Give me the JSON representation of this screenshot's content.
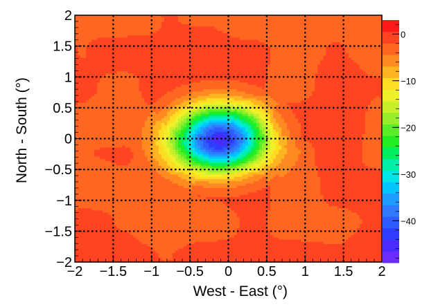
{
  "chart_data": {
    "type": "heatmap",
    "title": "",
    "xlabel": "West - East (°)",
    "ylabel": "North - South (°)",
    "xlim": [
      -2,
      2
    ],
    "ylim": [
      -2,
      2
    ],
    "x_ticks": [
      {
        "value": -2,
        "label": "−2"
      },
      {
        "value": -1.5,
        "label": "−1.5"
      },
      {
        "value": -1,
        "label": "−1"
      },
      {
        "value": -0.5,
        "label": "−0.5"
      },
      {
        "value": 0,
        "label": "0"
      },
      {
        "value": 0.5,
        "label": "0.5"
      },
      {
        "value": 1,
        "label": "1"
      },
      {
        "value": 1.5,
        "label": "1.5"
      },
      {
        "value": 2,
        "label": "2"
      }
    ],
    "y_ticks": [
      {
        "value": 2,
        "label": "2"
      },
      {
        "value": 1.5,
        "label": "1.5"
      },
      {
        "value": 1,
        "label": "1"
      },
      {
        "value": 0.5,
        "label": "0.5"
      },
      {
        "value": 0,
        "label": "0"
      },
      {
        "value": -0.5,
        "label": "−0.5"
      },
      {
        "value": -1,
        "label": "−1"
      },
      {
        "value": -1.5,
        "label": "−1.5"
      },
      {
        "value": -2,
        "label": "−2"
      }
    ],
    "grid": true,
    "deficit_center": {
      "x": -0.12,
      "y": 0.0
    },
    "deficit_min_value": -45,
    "background_value": -2,
    "colorbar": {
      "range": [
        -49,
        3
      ],
      "ticks": [
        {
          "value": 0,
          "label": "0"
        },
        {
          "value": -10,
          "label": "−10"
        },
        {
          "value": -20,
          "label": "−20"
        },
        {
          "value": -30,
          "label": "−30"
        },
        {
          "value": -40,
          "label": "−40"
        }
      ],
      "colors": [
        "#6a2cff",
        "#4a2bff",
        "#2f3dff",
        "#2f5bff",
        "#2f7aff",
        "#1e9cff",
        "#00c4ff",
        "#00e6e6",
        "#00f0a8",
        "#00ee60",
        "#22ee22",
        "#5aee2a",
        "#98ee2a",
        "#c8f02a",
        "#eef02a",
        "#ffdd22",
        "#ffb422",
        "#ff8a22",
        "#ff6622",
        "#ff4422",
        "#ff1a1a"
      ]
    }
  }
}
